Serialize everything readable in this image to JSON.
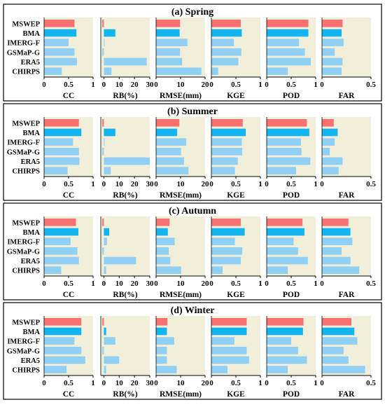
{
  "colors": {
    "panel_bg": "#f1efd9",
    "mswep": "#f87171",
    "bma": "#12b5f0",
    "others": "#8fd0f4",
    "frame": "#000000"
  },
  "chart_data": {
    "type": "bar",
    "orientation": "horizontal",
    "products": [
      "MSWEP",
      "BMA",
      "IMERG-F",
      "GSMaP-G",
      "ERA5",
      "CHIRPS"
    ],
    "metrics": [
      {
        "key": "cc",
        "label": "CC",
        "xlim": [
          0,
          1
        ],
        "ticks": [
          "0",
          "0.5",
          "1"
        ],
        "tick_values": [
          0,
          0.5,
          1
        ]
      },
      {
        "key": "rb",
        "label": "RB(%)",
        "xlim": [
          -2,
          30
        ],
        "ticks": [
          "0",
          "10",
          "20",
          "30"
        ],
        "tick_values": [
          0,
          10,
          20,
          30
        ]
      },
      {
        "key": "rmse",
        "label": "RMSE(mm)",
        "xlim": [
          0,
          20
        ],
        "ticks": [
          "0",
          "10",
          "20"
        ],
        "tick_values": [
          0,
          10,
          20
        ]
      },
      {
        "key": "kge",
        "label": "KGE",
        "xlim": [
          0,
          1
        ],
        "ticks": [
          "0",
          "0.5",
          "1"
        ],
        "tick_values": [
          0,
          0.5,
          1
        ]
      },
      {
        "key": "pod",
        "label": "POD",
        "xlim": [
          0,
          1
        ],
        "ticks": [
          "0",
          "0.5",
          "1"
        ],
        "tick_values": [
          0,
          0.5,
          1
        ]
      },
      {
        "key": "far",
        "label": "FAR",
        "xlim": [
          0,
          0.5
        ],
        "ticks": [
          "0",
          "0.5"
        ],
        "tick_values": [
          0,
          0.5
        ]
      }
    ],
    "seasons": [
      {
        "title": "(a) Spring",
        "values": {
          "cc": [
            0.62,
            0.66,
            0.5,
            0.62,
            0.67,
            0.36
          ],
          "rb": [
            -1.0,
            7.5,
            0.5,
            -1.0,
            28.0,
            5.0
          ],
          "rmse": [
            9.8,
            9.6,
            12.8,
            9.8,
            10.6,
            18.5
          ],
          "kge": [
            0.6,
            0.62,
            0.46,
            0.61,
            0.55,
            0.14
          ],
          "pod": [
            0.85,
            0.85,
            0.66,
            0.78,
            0.9,
            0.43
          ],
          "far": [
            0.21,
            0.2,
            0.22,
            0.13,
            0.21,
            0.2
          ]
        }
      },
      {
        "title": "(b) Summer",
        "values": {
          "cc": [
            0.71,
            0.76,
            0.59,
            0.71,
            0.72,
            0.48
          ],
          "rb": [
            -1.0,
            7.5,
            0.5,
            -1.0,
            30.0,
            4.5
          ],
          "rmse": [
            9.5,
            8.6,
            12.3,
            10.2,
            11.4,
            13.2
          ],
          "kge": [
            0.64,
            0.7,
            0.62,
            0.63,
            0.54,
            0.48
          ],
          "pod": [
            0.82,
            0.87,
            0.7,
            0.71,
            0.89,
            0.6
          ],
          "far": [
            0.12,
            0.16,
            0.13,
            0.08,
            0.21,
            0.17
          ]
        }
      },
      {
        "title": "(c) Autumn",
        "values": {
          "cc": [
            0.65,
            0.7,
            0.54,
            0.68,
            0.71,
            0.35
          ],
          "rb": [
            -1.0,
            3.5,
            2.0,
            -1.0,
            21.0,
            1.5
          ],
          "rmse": [
            5.5,
            4.8,
            7.6,
            5.2,
            5.8,
            10.2
          ],
          "kge": [
            0.6,
            0.68,
            0.48,
            0.63,
            0.6,
            0.23
          ],
          "pod": [
            0.73,
            0.77,
            0.55,
            0.64,
            0.84,
            0.43
          ],
          "far": [
            0.27,
            0.29,
            0.31,
            0.2,
            0.29,
            0.38
          ]
        }
      },
      {
        "title": "(d) Winter",
        "values": {
          "cc": [
            0.76,
            0.76,
            0.62,
            0.76,
            0.84,
            0.46
          ],
          "rb": [
            -1.0,
            1.5,
            7.5,
            -1.0,
            10.0,
            1.5
          ],
          "rmse": [
            4.6,
            4.4,
            7.4,
            4.4,
            4.4,
            8.4
          ],
          "kge": [
            0.72,
            0.72,
            0.47,
            0.72,
            0.77,
            0.33
          ],
          "pod": [
            0.75,
            0.74,
            0.5,
            0.64,
            0.82,
            0.43
          ],
          "far": [
            0.3,
            0.33,
            0.36,
            0.22,
            0.27,
            0.44
          ]
        }
      }
    ],
    "grid": false,
    "legend": "none"
  }
}
